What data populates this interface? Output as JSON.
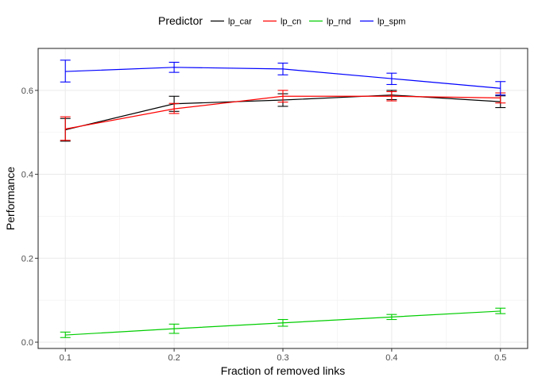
{
  "chart_data": {
    "type": "line",
    "xlabel": "Fraction of removed links",
    "ylabel": "Performance",
    "x": [
      0.1,
      0.2,
      0.3,
      0.4,
      0.5
    ],
    "x_ticks": [
      "0.1",
      "0.2",
      "0.3",
      "0.4",
      "0.5"
    ],
    "y_ticks": [
      "0.0",
      "0.2",
      "0.4",
      "0.6"
    ],
    "xlim": [
      0.075,
      0.525
    ],
    "ylim": [
      -0.015,
      0.7
    ],
    "grid": true,
    "legend": {
      "title": "Predictor",
      "placement": "top"
    },
    "series": [
      {
        "name": "lp_car",
        "color": "#000000",
        "values": [
          0.506,
          0.568,
          0.577,
          0.589,
          0.573
        ],
        "err_low": [
          0.479,
          0.55,
          0.562,
          0.578,
          0.559
        ],
        "err_high": [
          0.533,
          0.586,
          0.592,
          0.6,
          0.587
        ]
      },
      {
        "name": "lp_cn",
        "color": "#ff0000",
        "values": [
          0.508,
          0.556,
          0.586,
          0.586,
          0.582
        ],
        "err_low": [
          0.481,
          0.545,
          0.572,
          0.575,
          0.57
        ],
        "err_high": [
          0.537,
          0.569,
          0.6,
          0.597,
          0.594
        ]
      },
      {
        "name": "lp_rnd",
        "color": "#00cd00",
        "values": [
          0.017,
          0.032,
          0.046,
          0.06,
          0.074
        ],
        "err_low": [
          0.011,
          0.021,
          0.038,
          0.054,
          0.068
        ],
        "err_high": [
          0.024,
          0.043,
          0.054,
          0.066,
          0.081
        ]
      },
      {
        "name": "lp_spm",
        "color": "#0000ff",
        "values": [
          0.645,
          0.655,
          0.651,
          0.628,
          0.605
        ],
        "err_low": [
          0.62,
          0.643,
          0.637,
          0.614,
          0.589
        ],
        "err_high": [
          0.672,
          0.667,
          0.665,
          0.641,
          0.621
        ]
      }
    ]
  }
}
